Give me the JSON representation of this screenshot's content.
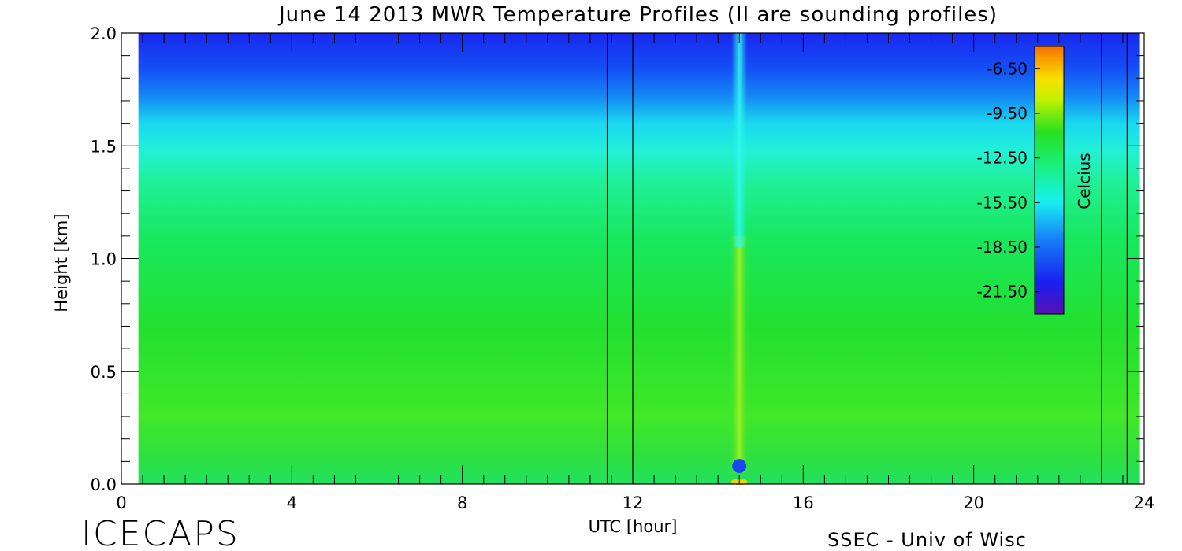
{
  "chart_data": {
    "type": "heatmap",
    "title": "June 14 2013 MWR Temperature Profiles (II are sounding profiles)",
    "xlabel": "UTC [hour]",
    "ylabel": "Height [km]",
    "xlim": [
      0,
      24
    ],
    "ylim": [
      0,
      2.0
    ],
    "x_ticks": [
      "0",
      "4",
      "8",
      "12",
      "16",
      "20",
      "24"
    ],
    "x_tick_values": [
      0,
      4,
      8,
      12,
      16,
      20,
      24
    ],
    "y_ticks": [
      "0.0",
      "0.5",
      "1.0",
      "1.5",
      "2.0"
    ],
    "y_tick_values": [
      0.0,
      0.5,
      1.0,
      1.5,
      2.0
    ],
    "data_start_hour": 0.4,
    "data_end_hour": 23.9,
    "sounding_markers_hour": [
      11.4,
      12.0,
      23.0,
      23.6
    ],
    "colorbar": {
      "label": "Celcius",
      "min": -23.0,
      "max": -5.0,
      "tick_labels": [
        "-6.50",
        "-9.50",
        "-12.50",
        "-15.50",
        "-18.50",
        "-21.50"
      ],
      "tick_values": [
        -6.5,
        -9.5,
        -12.5,
        -15.5,
        -18.5,
        -21.5
      ]
    },
    "temperature_profile_typical": {
      "height_km": [
        0.0,
        0.3,
        0.6,
        1.0,
        1.3,
        1.5,
        1.7,
        2.0
      ],
      "temp_c": [
        -13.0,
        -12.2,
        -13.0,
        -13.6,
        -14.5,
        -16.2,
        -18.5,
        -20.5
      ]
    },
    "features": [
      {
        "hour": 14.5,
        "height_km": 0.08,
        "temp_c": -19.5
      },
      {
        "hour": 14.5,
        "height_km": 0.0,
        "temp_c": -8.0
      }
    ]
  },
  "footer": {
    "brand": "ICECAPS",
    "credit": "SSEC - Univ of Wisc"
  }
}
